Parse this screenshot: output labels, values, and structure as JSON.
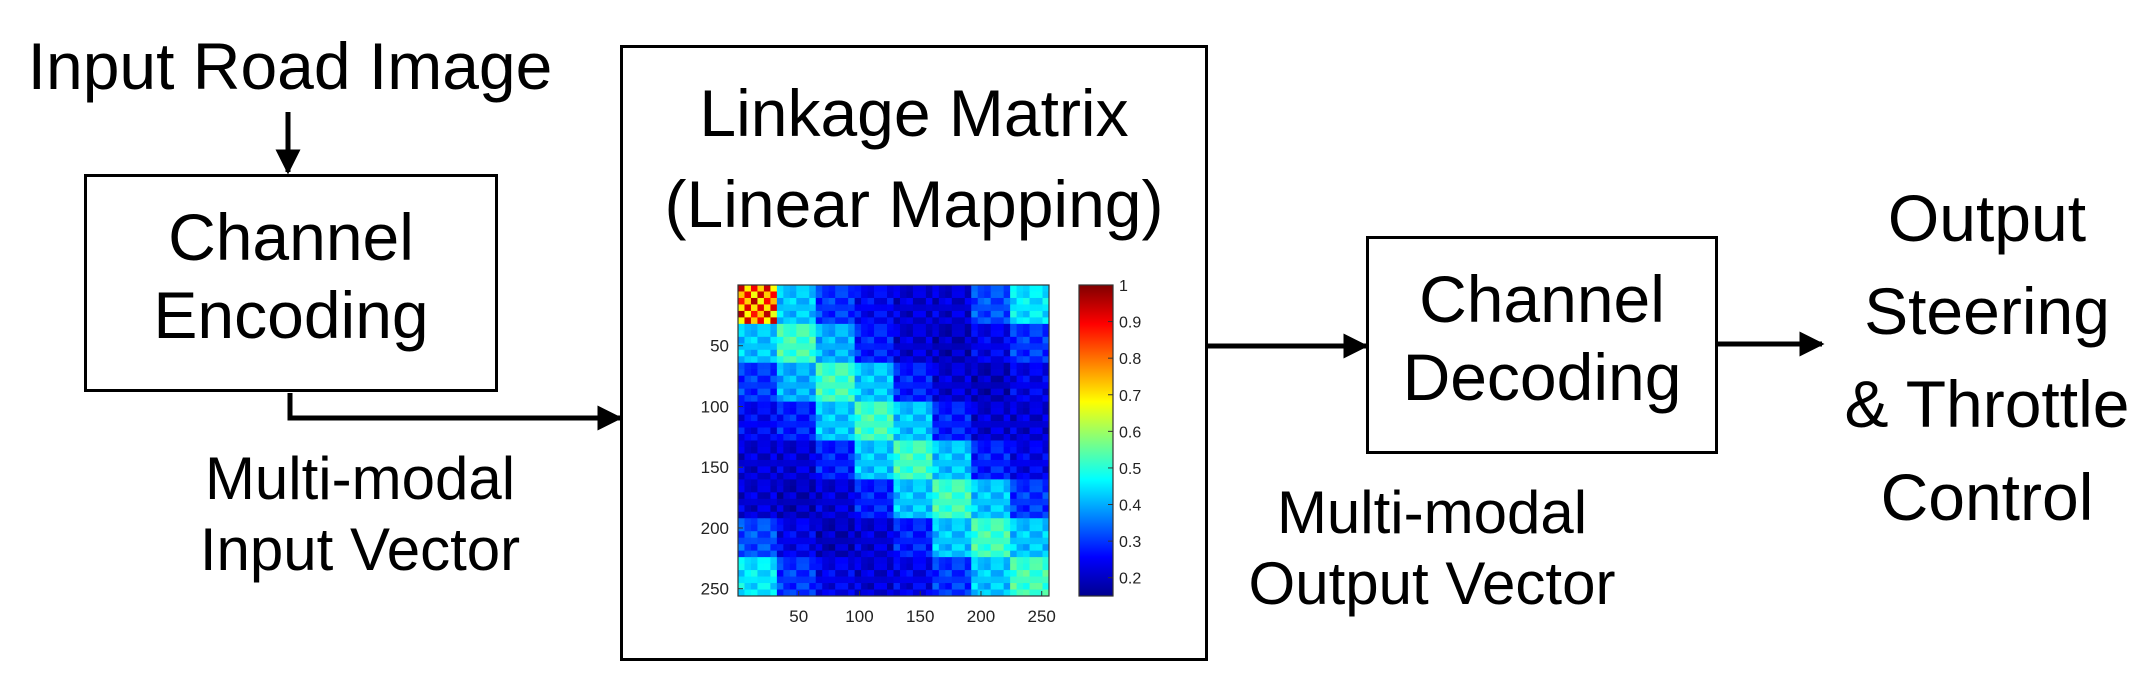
{
  "input": {
    "label": "Input Road Image"
  },
  "encoder": {
    "line1": "Channel",
    "line2": "Encoding"
  },
  "input_vector": {
    "line1": "Multi-modal",
    "line2": "Input Vector"
  },
  "linkage": {
    "line1": "Linkage Matrix",
    "line2": "(Linear Mapping)"
  },
  "decoder": {
    "line1": "Channel",
    "line2": "Decoding"
  },
  "output_vector": {
    "line1": "Multi-modal",
    "line2": "Output Vector"
  },
  "output": {
    "line1": "Output",
    "line2": "Steering",
    "line3": "& Throttle",
    "line4": "Control"
  },
  "heatmap": {
    "x_ticks": [
      "50",
      "100",
      "150",
      "200",
      "250"
    ],
    "y_ticks": [
      "50",
      "100",
      "150",
      "200",
      "250"
    ],
    "colorbar_ticks": [
      "1",
      "0.9",
      "0.8",
      "0.7",
      "0.6",
      "0.5",
      "0.4",
      "0.3",
      "0.2"
    ],
    "colormap": "jet"
  },
  "chart_data": {
    "type": "heatmap",
    "x_ticks": [
      50,
      100,
      150,
      200,
      250
    ],
    "y_ticks": [
      50,
      100,
      150,
      200,
      250
    ],
    "xlim": [
      0,
      256
    ],
    "ylim": [
      0,
      256
    ],
    "colorbar_range": [
      0.15,
      1
    ],
    "colorbar_ticks": [
      1,
      0.9,
      0.8,
      0.7,
      0.6,
      0.5,
      0.4,
      0.3,
      0.2
    ],
    "block_values": [
      [
        0.7,
        0.42,
        0.3,
        0.25,
        0.22,
        0.22,
        0.32,
        0.45
      ],
      [
        0.42,
        0.52,
        0.4,
        0.28,
        0.22,
        0.2,
        0.24,
        0.3
      ],
      [
        0.3,
        0.4,
        0.52,
        0.42,
        0.28,
        0.22,
        0.2,
        0.24
      ],
      [
        0.25,
        0.28,
        0.42,
        0.52,
        0.42,
        0.28,
        0.22,
        0.22
      ],
      [
        0.22,
        0.22,
        0.28,
        0.42,
        0.52,
        0.42,
        0.28,
        0.24
      ],
      [
        0.22,
        0.2,
        0.22,
        0.28,
        0.42,
        0.52,
        0.42,
        0.3
      ],
      [
        0.32,
        0.24,
        0.2,
        0.22,
        0.28,
        0.42,
        0.52,
        0.42
      ],
      [
        0.45,
        0.3,
        0.24,
        0.22,
        0.24,
        0.3,
        0.42,
        0.52
      ]
    ]
  }
}
